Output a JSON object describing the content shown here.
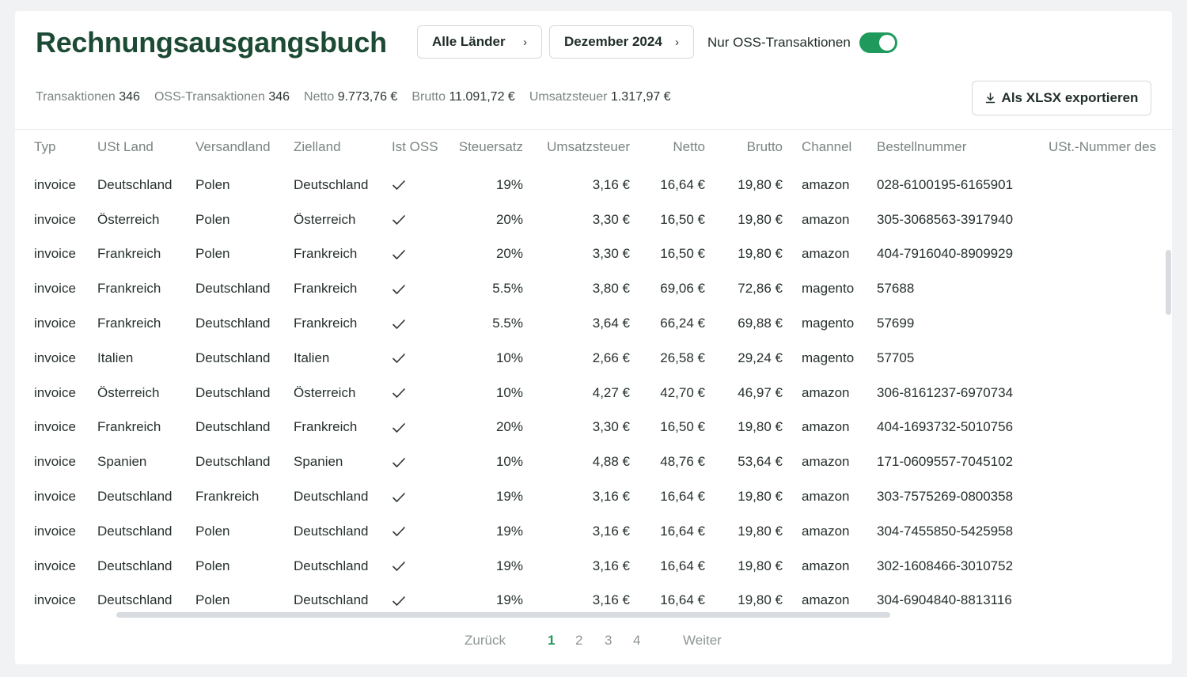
{
  "header": {
    "title": "Rechnungsausgangsbuch",
    "country_select": "Alle Länder",
    "month_select": "Dezember 2024",
    "oss_toggle_label": "Nur OSS-Transaktionen",
    "oss_toggle_on": true,
    "export_label": "Als XLSX exportieren"
  },
  "stats": [
    {
      "label": "Transaktionen",
      "value": "346"
    },
    {
      "label": "OSS-Transaktionen",
      "value": "346"
    },
    {
      "label": "Netto",
      "value": "9.773,76 €"
    },
    {
      "label": "Brutto",
      "value": "11.091,72 €"
    },
    {
      "label": "Umsatzsteuer",
      "value": "1.317,97 €"
    }
  ],
  "table": {
    "columns": [
      "Typ",
      "USt Land",
      "Versandland",
      "Zielland",
      "Ist OSS",
      "Steuersatz",
      "Umsatzsteuer",
      "Netto",
      "Brutto",
      "Channel",
      "Bestellnummer",
      "USt.-Nummer des"
    ],
    "rows": [
      [
        "invoice",
        "Deutschland",
        "Polen",
        "Deutschland",
        "check",
        "19%",
        "3,16 €",
        "16,64 €",
        "19,80 €",
        "amazon",
        "028-6100195-6165901",
        ""
      ],
      [
        "invoice",
        "Österreich",
        "Polen",
        "Österreich",
        "check",
        "20%",
        "3,30 €",
        "16,50 €",
        "19,80 €",
        "amazon",
        "305-3068563-3917940",
        ""
      ],
      [
        "invoice",
        "Frankreich",
        "Polen",
        "Frankreich",
        "check",
        "20%",
        "3,30 €",
        "16,50 €",
        "19,80 €",
        "amazon",
        "404-7916040-8909929",
        ""
      ],
      [
        "invoice",
        "Frankreich",
        "Deutschland",
        "Frankreich",
        "check",
        "5.5%",
        "3,80 €",
        "69,06 €",
        "72,86 €",
        "magento",
        "57688",
        ""
      ],
      [
        "invoice",
        "Frankreich",
        "Deutschland",
        "Frankreich",
        "check",
        "5.5%",
        "3,64 €",
        "66,24 €",
        "69,88 €",
        "magento",
        "57699",
        ""
      ],
      [
        "invoice",
        "Italien",
        "Deutschland",
        "Italien",
        "check",
        "10%",
        "2,66 €",
        "26,58 €",
        "29,24 €",
        "magento",
        "57705",
        ""
      ],
      [
        "invoice",
        "Österreich",
        "Deutschland",
        "Österreich",
        "check",
        "10%",
        "4,27 €",
        "42,70 €",
        "46,97 €",
        "amazon",
        "306-8161237-6970734",
        ""
      ],
      [
        "invoice",
        "Frankreich",
        "Deutschland",
        "Frankreich",
        "check",
        "20%",
        "3,30 €",
        "16,50 €",
        "19,80 €",
        "amazon",
        "404-1693732-5010756",
        ""
      ],
      [
        "invoice",
        "Spanien",
        "Deutschland",
        "Spanien",
        "check",
        "10%",
        "4,88 €",
        "48,76 €",
        "53,64 €",
        "amazon",
        "171-0609557-7045102",
        ""
      ],
      [
        "invoice",
        "Deutschland",
        "Frankreich",
        "Deutschland",
        "check",
        "19%",
        "3,16 €",
        "16,64 €",
        "19,80 €",
        "amazon",
        "303-7575269-0800358",
        ""
      ],
      [
        "invoice",
        "Deutschland",
        "Polen",
        "Deutschland",
        "check",
        "19%",
        "3,16 €",
        "16,64 €",
        "19,80 €",
        "amazon",
        "304-7455850-5425958",
        ""
      ],
      [
        "invoice",
        "Deutschland",
        "Polen",
        "Deutschland",
        "check",
        "19%",
        "3,16 €",
        "16,64 €",
        "19,80 €",
        "amazon",
        "302-1608466-3010752",
        ""
      ],
      [
        "invoice",
        "Deutschland",
        "Polen",
        "Deutschland",
        "check",
        "19%",
        "3,16 €",
        "16,64 €",
        "19,80 €",
        "amazon",
        "304-6904840-8813116",
        ""
      ]
    ]
  },
  "pagination": {
    "prev": "Zurück",
    "pages": [
      "1",
      "2",
      "3",
      "4"
    ],
    "current": "1",
    "next": "Weiter"
  },
  "colors": {
    "accent": "#1f9a5c",
    "title": "#1c4a34"
  },
  "icons": {
    "chevron": "chevron-right-icon",
    "export": "download-icon",
    "oss": "check-icon"
  }
}
